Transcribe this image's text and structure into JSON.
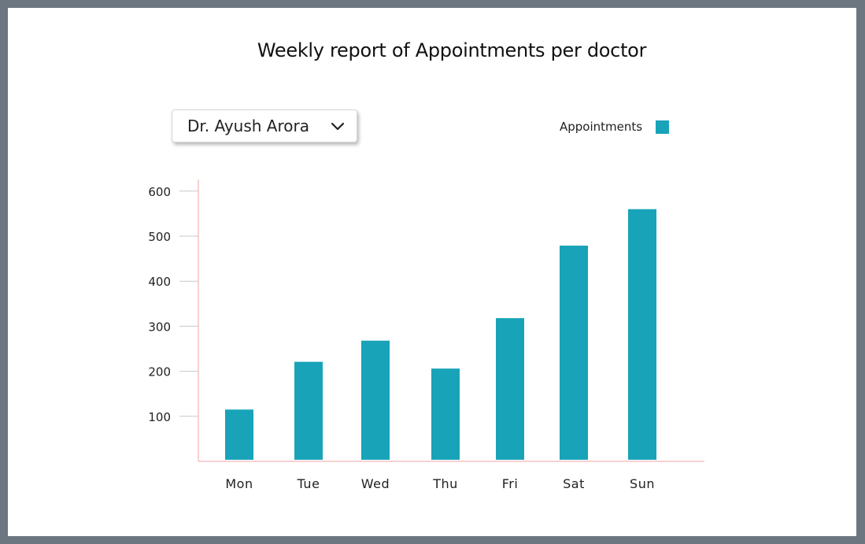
{
  "header": {
    "title": "Weekly report of Appointments per doctor"
  },
  "doctor_select": {
    "selected": "Dr. Ayush Arora",
    "icon": "chevron-down-icon"
  },
  "legend": {
    "label": "Appointments",
    "color": "#18a3b9"
  },
  "chart_data": {
    "type": "bar",
    "categories": [
      "Mon",
      "Tue",
      "Wed",
      "Thu",
      "Fri",
      "Sat",
      "Sun"
    ],
    "series": [
      {
        "name": "Appointments",
        "values": [
          115,
          221,
          268,
          206,
          318,
          479,
          560
        ]
      }
    ],
    "yticks": [
      100,
      200,
      300,
      400,
      500,
      600
    ],
    "ytick_labels": [
      "100",
      "200",
      "300",
      "400",
      "500",
      "600"
    ],
    "ylim": [
      0,
      630
    ],
    "grid": false,
    "legend_position": "top-right",
    "bar_color": "#18a3b9",
    "axis_color": "#f2a3a6",
    "tick_color": "#c8c8c8"
  }
}
